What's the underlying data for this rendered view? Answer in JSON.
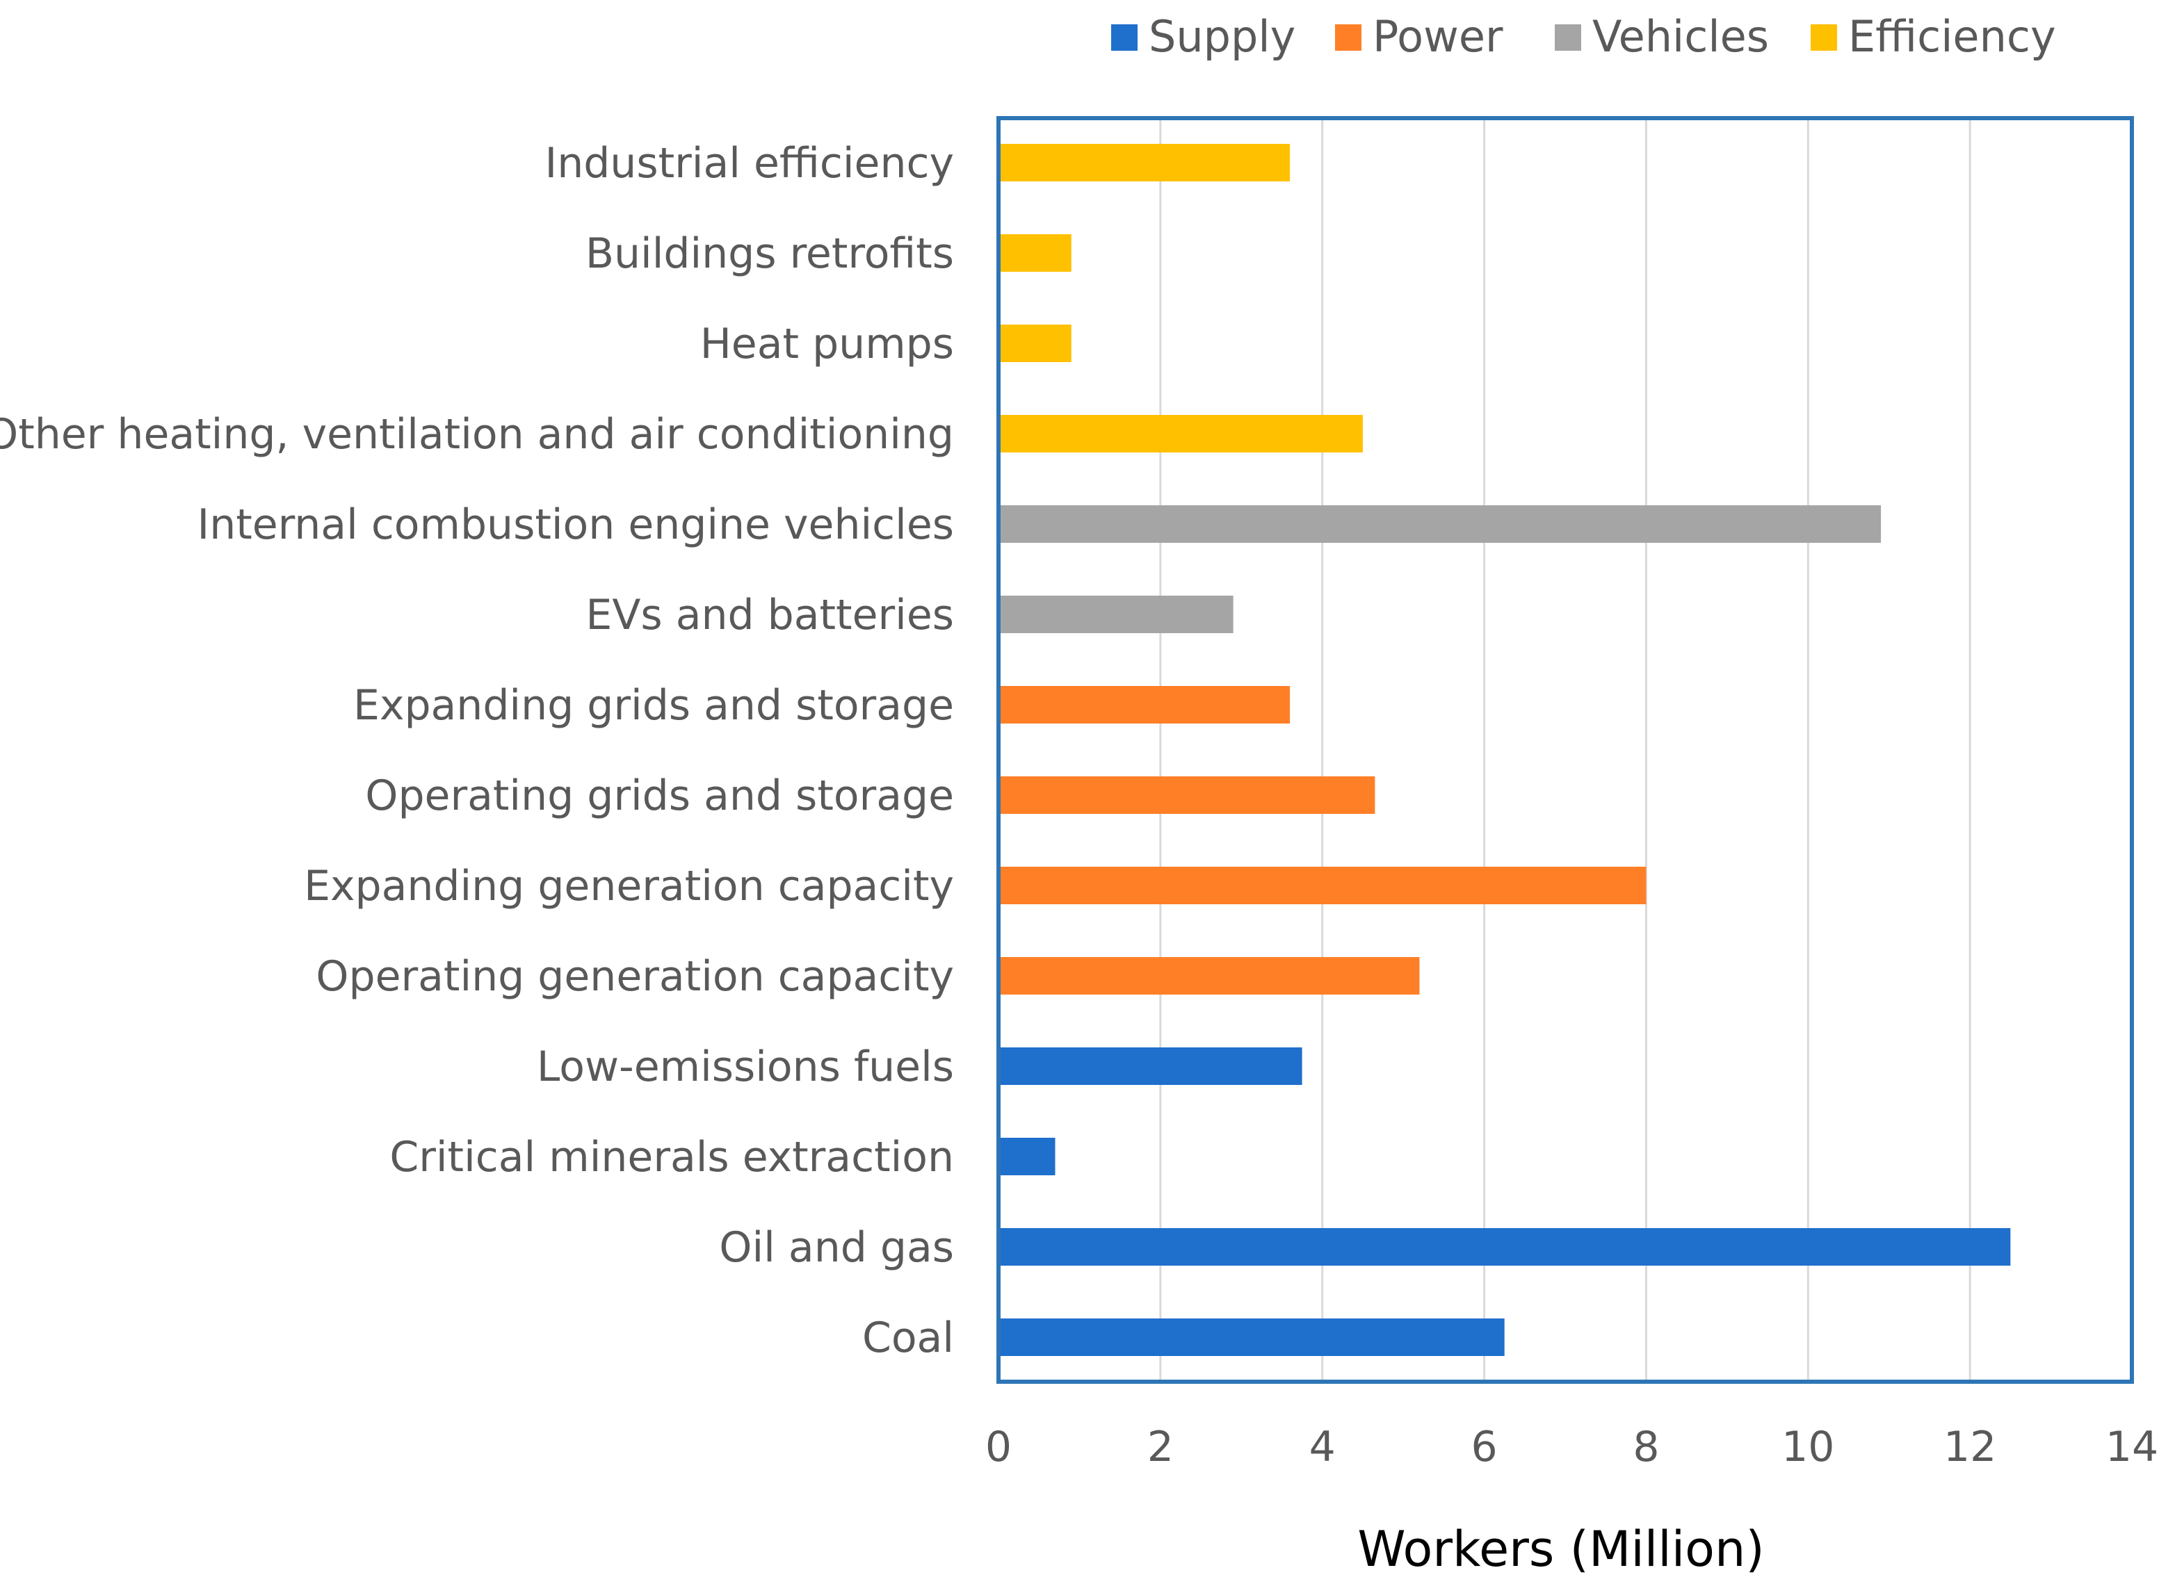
{
  "chart_data": {
    "type": "bar",
    "orientation": "horizontal",
    "title": "",
    "xlabel": "Workers (Million)",
    "ylabel": "",
    "xlim": [
      0,
      14
    ],
    "xticks": [
      0,
      2,
      4,
      6,
      8,
      10,
      12,
      14
    ],
    "grid": true,
    "legend_position": "top",
    "series": [
      {
        "name": "Supply",
        "color": "#1F6FCC"
      },
      {
        "name": "Power",
        "color": "#FF7F27"
      },
      {
        "name": "Vehicles",
        "color": "#A5A5A5"
      },
      {
        "name": "Efficiency",
        "color": "#FFC000"
      }
    ],
    "bars": [
      {
        "category": "Industrial efficiency",
        "series": "Efficiency",
        "value": 3.6
      },
      {
        "category": "Buildings retrofits",
        "series": "Efficiency",
        "value": 0.9
      },
      {
        "category": "Heat pumps",
        "series": "Efficiency",
        "value": 0.9
      },
      {
        "category": "Other heating, ventilation and air conditioning",
        "series": "Efficiency",
        "value": 4.5
      },
      {
        "category": "Internal combustion engine vehicles",
        "series": "Vehicles",
        "value": 10.9
      },
      {
        "category": "EVs and batteries",
        "series": "Vehicles",
        "value": 2.9
      },
      {
        "category": "Expanding grids and storage",
        "series": "Power",
        "value": 3.6
      },
      {
        "category": "Operating grids and storage",
        "series": "Power",
        "value": 4.65
      },
      {
        "category": "Expanding generation capacity",
        "series": "Power",
        "value": 8.0
      },
      {
        "category": "Operating generation capacity",
        "series": "Power",
        "value": 5.2
      },
      {
        "category": "Low-emissions fuels",
        "series": "Supply",
        "value": 3.75
      },
      {
        "category": "Critical minerals extraction",
        "series": "Supply",
        "value": 0.7
      },
      {
        "category": "Oil and gas",
        "series": "Supply",
        "value": 12.5
      },
      {
        "category": "Coal",
        "series": "Supply",
        "value": 6.25
      }
    ]
  },
  "style": {
    "plot_border_color": "#2E75B6",
    "grid_color": "#D9D9D9"
  }
}
